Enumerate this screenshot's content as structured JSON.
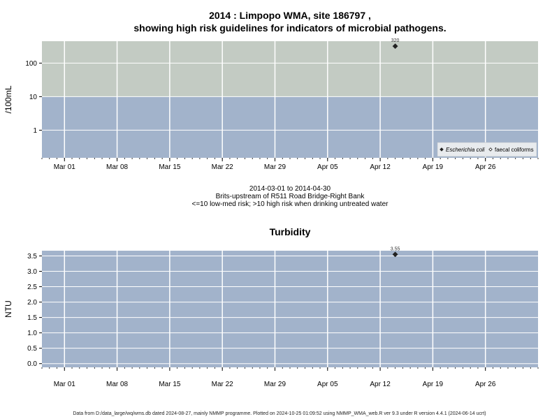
{
  "title_line1": "2014 : Limpopo WMA, site 186797 ,",
  "title_line2": "showing high risk guidelines for indicators of microbial pathogens.",
  "caption": {
    "line1": "2014-03-01 to 2014-04-30",
    "line2": "Brits-upstream of R511 Road Bridge-Right Bank",
    "line3": "<=10 low-med risk; >10 high risk when drinking untreated water"
  },
  "footer": "Data from D:/data_large/wq/wms.db dated 2024-08-27, mainly NMMP programme. Plotted on 2024-10-25 01:09:52 using NMMP_WMA_web.R ver 9.3 under R version 4.4.1 (2024-06-14 ucrt)",
  "colors": {
    "low_band": "#a2b3cb",
    "high_band": "#c3cbc3",
    "grid": "#ffffff",
    "point": "#222222"
  },
  "chart_data": [
    {
      "type": "scatter",
      "title": "",
      "ylabel": "/100mL",
      "y_scale": "log",
      "ylim": [
        0.15,
        450
      ],
      "xlim": [
        "2014-02-26",
        "2014-05-03"
      ],
      "x_ticks": [
        {
          "date": "2014-03-01",
          "label": "Mar 01"
        },
        {
          "date": "2014-03-08",
          "label": "Mar 08"
        },
        {
          "date": "2014-03-15",
          "label": "Mar 15"
        },
        {
          "date": "2014-03-22",
          "label": "Mar 22"
        },
        {
          "date": "2014-03-29",
          "label": "Mar 29"
        },
        {
          "date": "2014-04-05",
          "label": "Apr 05"
        },
        {
          "date": "2014-04-12",
          "label": "Apr 12"
        },
        {
          "date": "2014-04-19",
          "label": "Apr 19"
        },
        {
          "date": "2014-04-26",
          "label": "Apr 26"
        }
      ],
      "y_ticks": [
        {
          "value": 1,
          "label": "1"
        },
        {
          "value": 10,
          "label": "10"
        },
        {
          "value": 100,
          "label": "100"
        }
      ],
      "risk_threshold": 10,
      "series": [
        {
          "name": "Escherichia coli",
          "marker": "filled-diamond",
          "points": [
            {
              "x": "2014-04-14",
              "y": 320,
              "label": "320"
            }
          ]
        },
        {
          "name": "faecal coliforms",
          "marker": "open-diamond",
          "points": []
        }
      ],
      "legend": "bottom-right",
      "grid": true
    },
    {
      "type": "scatter",
      "title": "Turbidity",
      "ylabel": "NTU",
      "y_scale": "linear",
      "ylim": [
        -0.12,
        3.67
      ],
      "xlim": [
        "2014-02-26",
        "2014-05-03"
      ],
      "x_ticks": [
        {
          "date": "2014-03-01",
          "label": "Mar 01"
        },
        {
          "date": "2014-03-08",
          "label": "Mar 08"
        },
        {
          "date": "2014-03-15",
          "label": "Mar 15"
        },
        {
          "date": "2014-03-22",
          "label": "Mar 22"
        },
        {
          "date": "2014-03-29",
          "label": "Mar 29"
        },
        {
          "date": "2014-04-05",
          "label": "Apr 05"
        },
        {
          "date": "2014-04-12",
          "label": "Apr 12"
        },
        {
          "date": "2014-04-19",
          "label": "Apr 19"
        },
        {
          "date": "2014-04-26",
          "label": "Apr 26"
        }
      ],
      "y_ticks": [
        {
          "value": 0.0,
          "label": "0.0"
        },
        {
          "value": 0.5,
          "label": "0.5"
        },
        {
          "value": 1.0,
          "label": "1.0"
        },
        {
          "value": 1.5,
          "label": "1.5"
        },
        {
          "value": 2.0,
          "label": "2.0"
        },
        {
          "value": 2.5,
          "label": "2.5"
        },
        {
          "value": 3.0,
          "label": "3.0"
        },
        {
          "value": 3.5,
          "label": "3.5"
        }
      ],
      "series": [
        {
          "name": "",
          "marker": "filled-diamond",
          "points": [
            {
              "x": "2014-04-14",
              "y": 3.55,
              "label": "3.55"
            }
          ]
        }
      ],
      "grid": true
    }
  ]
}
